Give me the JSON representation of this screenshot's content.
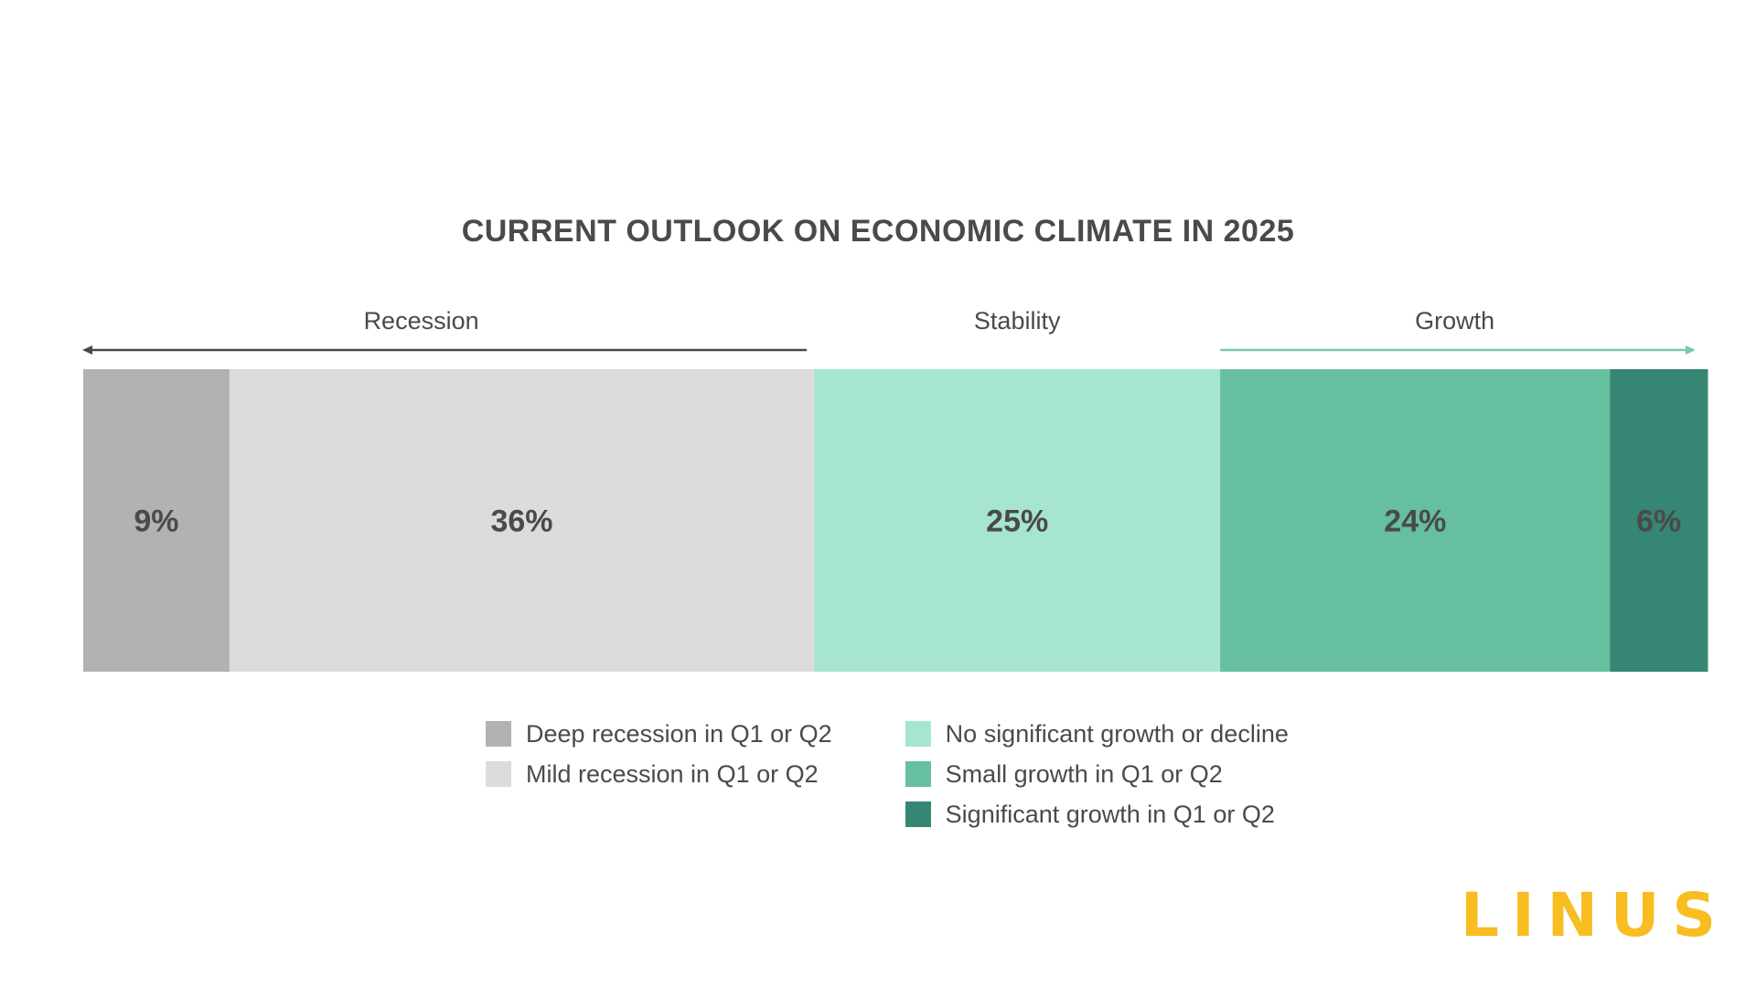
{
  "chart_data": {
    "type": "bar",
    "orientation": "horizontal-stacked",
    "title": "CURRENT OUTLOOK ON ECONOMIC CLIMATE IN 2025",
    "categories": [
      "Deep recession in Q1 or Q2",
      "Mild recession in Q1 or Q2",
      "No significant growth or decline",
      "Small growth in Q1 or Q2",
      "Significant growth in Q1 or Q2"
    ],
    "values": [
      9,
      36,
      25,
      24,
      6
    ],
    "data_labels": [
      "9%",
      "36%",
      "25%",
      "24%",
      "6%"
    ],
    "unit": "%",
    "colors": [
      "#b2b2b2",
      "#dcdcdc",
      "#a6e5cf",
      "#66bf9f",
      "#358672"
    ],
    "groups": [
      {
        "label": "Recession",
        "arrow": "left",
        "color": "#4a4a4a"
      },
      {
        "label": "Stability",
        "arrow": "none",
        "color": "#4a4a4a"
      },
      {
        "label": "Growth",
        "arrow": "right",
        "color": "#7ac7ab"
      }
    ],
    "legend_position": "bottom",
    "grid": false
  },
  "legend": {
    "col1": [
      {
        "label": "Deep recession in Q1 or Q2",
        "color": "#b2b2b2"
      },
      {
        "label": "Mild recession in Q1 or Q2",
        "color": "#dcdcdc"
      }
    ],
    "col2": [
      {
        "label": "No significant growth or decline",
        "color": "#a6e5cf"
      },
      {
        "label": "Small growth in Q1 or Q2",
        "color": "#66bf9f"
      },
      {
        "label": "Significant growth in Q1 or Q2",
        "color": "#358672"
      }
    ]
  },
  "logo": {
    "text": "LINUS",
    "color": "#f7bd21"
  }
}
